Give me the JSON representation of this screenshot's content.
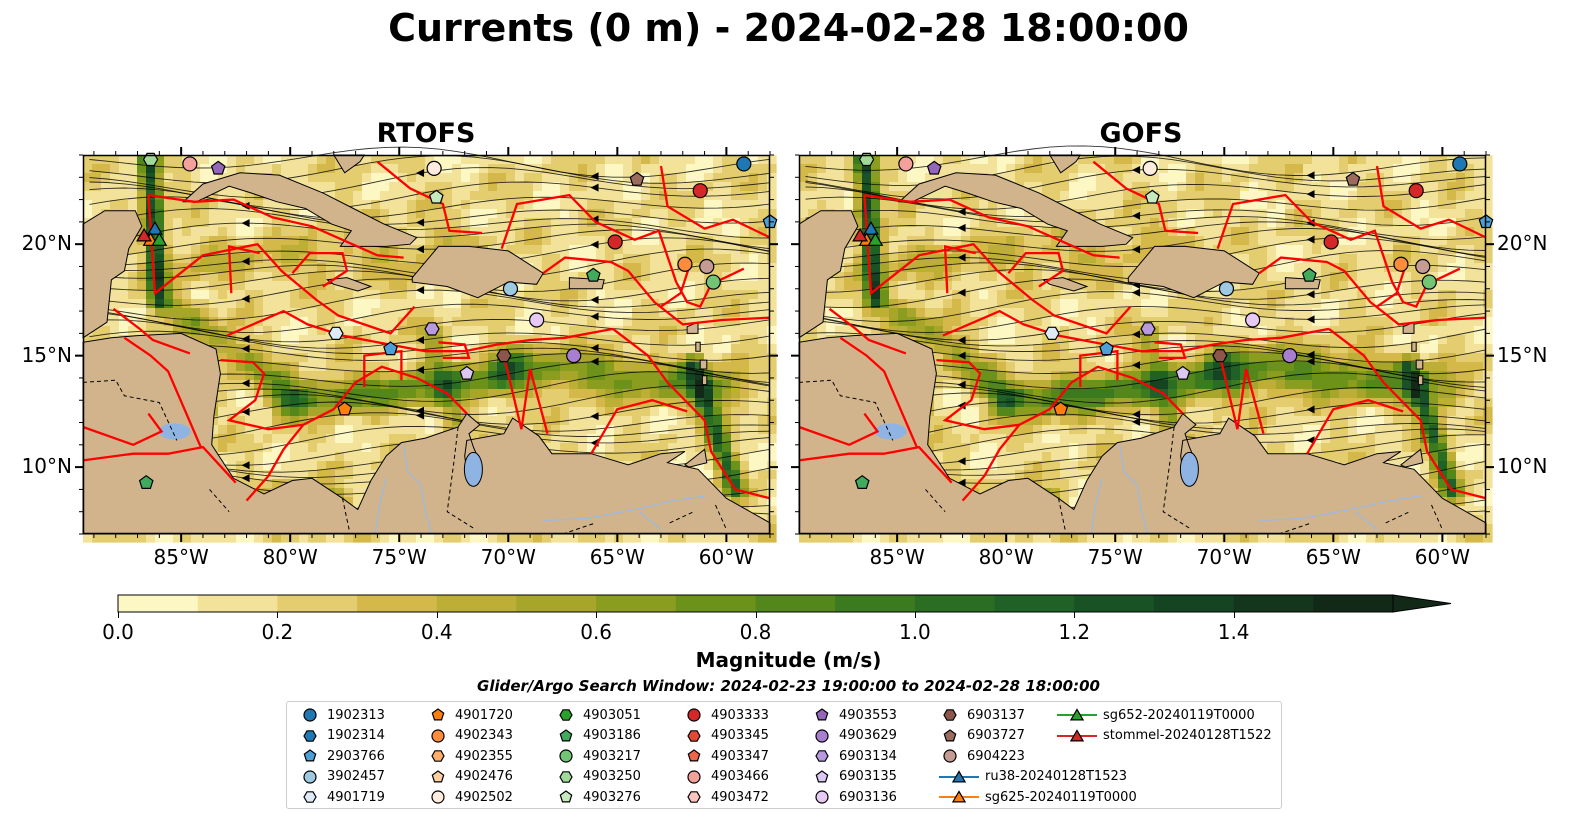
{
  "title": "Currents (0 m) - 2024-02-28 18:00:00",
  "panels": [
    {
      "name": "RTOFS"
    },
    {
      "name": "GOFS"
    }
  ],
  "lon_ticks": [
    "85°W",
    "80°W",
    "75°W",
    "70°W",
    "65°W",
    "60°W"
  ],
  "lat_ticks": [
    "20°N",
    "15°N",
    "10°N"
  ],
  "colorbar": {
    "label": "Magnitude (m/s)",
    "ticks": [
      "0.0",
      "0.2",
      "0.4",
      "0.6",
      "0.8",
      "1.0",
      "1.2",
      "1.4"
    ],
    "colors": [
      "#fdf7c4",
      "#f3e39a",
      "#e3cd6e",
      "#d4b84a",
      "#bdae35",
      "#a8a52b",
      "#8a9d1f",
      "#6d921a",
      "#53871b",
      "#3b7a1f",
      "#2a6d23",
      "#1f6126",
      "#185225",
      "#154422",
      "#14361d",
      "#132918"
    ]
  },
  "search_window": "Glider/Argo Search Window: 2024-02-23 19:00:00 to 2024-02-28 18:00:00",
  "legend": [
    {
      "label": "1902313",
      "shape": "circle",
      "color": "#1f77b4"
    },
    {
      "label": "1902314",
      "shape": "hexagon",
      "color": "#1f77b4"
    },
    {
      "label": "2903766",
      "shape": "pentagon",
      "color": "#4d9fd8"
    },
    {
      "label": "3902457",
      "shape": "circle",
      "color": "#9ecae1"
    },
    {
      "label": "4901719",
      "shape": "hexagon",
      "color": "#deebf7"
    },
    {
      "label": "4901720",
      "shape": "pentagon",
      "color": "#ff7f0e"
    },
    {
      "label": "4902343",
      "shape": "circle",
      "color": "#fd8d3c"
    },
    {
      "label": "4902355",
      "shape": "hexagon",
      "color": "#fdae6b"
    },
    {
      "label": "4902476",
      "shape": "pentagon",
      "color": "#fdd0a2"
    },
    {
      "label": "4902502",
      "shape": "circle",
      "color": "#feedde"
    },
    {
      "label": "4903051",
      "shape": "hexagon",
      "color": "#2ca02c"
    },
    {
      "label": "4903186",
      "shape": "pentagon",
      "color": "#41ab5d"
    },
    {
      "label": "4903217",
      "shape": "circle",
      "color": "#74c476"
    },
    {
      "label": "4903250",
      "shape": "hexagon",
      "color": "#a1d99b"
    },
    {
      "label": "4903276",
      "shape": "pentagon",
      "color": "#c7e9c0"
    },
    {
      "label": "4903333",
      "shape": "circle",
      "color": "#d62728"
    },
    {
      "label": "4903345",
      "shape": "hexagon",
      "color": "#e34a33"
    },
    {
      "label": "4903347",
      "shape": "pentagon",
      "color": "#ef6548"
    },
    {
      "label": "4903466",
      "shape": "circle",
      "color": "#f4a09b"
    },
    {
      "label": "4903472",
      "shape": "hexagon",
      "color": "#fcc5c0"
    },
    {
      "label": "4903553",
      "shape": "pentagon",
      "color": "#9467bd"
    },
    {
      "label": "4903629",
      "shape": "circle",
      "color": "#a87fd0"
    },
    {
      "label": "6903134",
      "shape": "hexagon",
      "color": "#b999e0"
    },
    {
      "label": "6903135",
      "shape": "pentagon",
      "color": "#dac8f2"
    },
    {
      "label": "6903136",
      "shape": "circle",
      "color": "#e6c9f5"
    },
    {
      "label": "6903137",
      "shape": "hexagon",
      "color": "#8c564b"
    },
    {
      "label": "6903727",
      "shape": "pentagon",
      "color": "#9c6b5e"
    },
    {
      "label": "6904223",
      "shape": "circle",
      "color": "#c49c94"
    },
    {
      "label": "ru38-20240128T1523",
      "shape": "triangle",
      "color": "#1f77b4"
    },
    {
      "label": "sg625-20240119T0000",
      "shape": "triangle",
      "color": "#ff7f0e"
    },
    {
      "label": "sg652-20240119T0000",
      "shape": "triangle",
      "color": "#2ca02c"
    },
    {
      "label": "stommel-20240128T1522",
      "shape": "triangle",
      "color": "#d62728"
    }
  ],
  "map_colors": {
    "land": "#d2b48c",
    "river": "#9db9de",
    "lake": "#8fb3e3",
    "eez": "#ff0000",
    "stream": "#000000"
  },
  "platforms": [
    {
      "id": "4903333",
      "lon": -61.2,
      "lat": 22.4
    },
    {
      "id": "1902313",
      "lon": -59.2,
      "lat": 23.6
    },
    {
      "id": "2903766",
      "lon": -58.0,
      "lat": 21.0
    },
    {
      "id": "6903727",
      "lon": -64.1,
      "lat": 22.9
    },
    {
      "id": "4903333",
      "lon": -65.1,
      "lat": 20.1
    },
    {
      "id": "4903186",
      "lon": -66.1,
      "lat": 18.6
    },
    {
      "id": "4902343",
      "lon": -61.9,
      "lat": 19.1
    },
    {
      "id": "6904223",
      "lon": -60.9,
      "lat": 19.0
    },
    {
      "id": "4903217",
      "lon": -60.6,
      "lat": 18.3
    },
    {
      "id": "3902457",
      "lon": -69.9,
      "lat": 18.0
    },
    {
      "id": "6903136",
      "lon": -68.7,
      "lat": 16.6
    },
    {
      "id": "4903629",
      "lon": -67.0,
      "lat": 15.0
    },
    {
      "id": "6903137",
      "lon": -70.2,
      "lat": 15.0
    },
    {
      "id": "6903135",
      "lon": -71.9,
      "lat": 14.2
    },
    {
      "id": "6903134",
      "lon": -73.5,
      "lat": 16.2
    },
    {
      "id": "2903766",
      "lon": -75.4,
      "lat": 15.3
    },
    {
      "id": "4901719",
      "lon": -77.9,
      "lat": 16.0
    },
    {
      "id": "4901720",
      "lon": -77.5,
      "lat": 12.6
    },
    {
      "id": "4903186",
      "lon": -86.6,
      "lat": 9.3
    },
    {
      "id": "4903276",
      "lon": -73.3,
      "lat": 22.1
    },
    {
      "id": "4902502",
      "lon": -73.4,
      "lat": 23.4
    },
    {
      "id": "4903466",
      "lon": -84.6,
      "lat": 23.6
    },
    {
      "id": "4903553",
      "lon": -83.3,
      "lat": 23.4
    },
    {
      "id": "4903250",
      "lon": -86.4,
      "lat": 23.8
    }
  ],
  "gliders": [
    {
      "id": "ru38-20240128T1523",
      "lon": -86.2,
      "lat": 20.7
    },
    {
      "id": "sg625-20240119T0000",
      "lon": -86.4,
      "lat": 20.2
    },
    {
      "id": "sg652-20240119T0000",
      "lon": -86.0,
      "lat": 20.2
    },
    {
      "id": "stommel-20240128T1522",
      "lon": -86.7,
      "lat": 20.4
    }
  ]
}
